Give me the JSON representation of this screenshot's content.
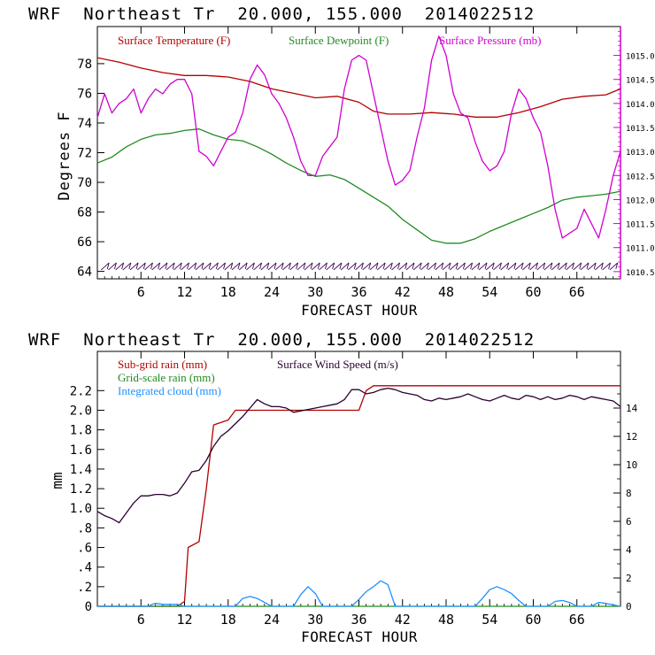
{
  "colors": {
    "temperature": "#b40000",
    "dewpoint": "#228b22",
    "pressure": "#d000d0",
    "subgrid_rain": "#b40000",
    "grid_rain": "#228b22",
    "cloud": "#1e90ff",
    "wind_speed": "#2a0030",
    "axis": "#000000"
  },
  "top_panel": {
    "header": "WRF  Northeast Tr  20.000, 155.000  2014022512",
    "ylabel": "Degrees F",
    "xlabel": "FORECAST HOUR",
    "legend": {
      "temperature": "Surface Temperature (F)",
      "dewpoint": "Surface Dewpoint (F)",
      "pressure": "Surface Pressure (mb)"
    }
  },
  "bottom_panel": {
    "header": "WRF  Northeast Tr  20.000, 155.000  2014022512",
    "ylabel": "mm",
    "xlabel": "FORECAST HOUR",
    "legend": {
      "subgrid_rain": "Sub-grid rain (mm)",
      "wind_speed": "Surface Wind Speed (m/s)",
      "grid_rain": "Grid-scale rain (mm)",
      "cloud": "Integrated cloud (mm)"
    }
  },
  "chart_data": [
    {
      "type": "line",
      "title": "WRF  Northeast Tr  20.000, 155.000  2014022512",
      "xlabel": "FORECAST HOUR",
      "ylabel": "Degrees F",
      "xlim": [
        0,
        72
      ],
      "ylim": [
        63.5,
        80.5
      ],
      "y2lim": [
        1010.35,
        1015.6
      ],
      "xticks": [
        6,
        12,
        18,
        24,
        30,
        36,
        42,
        48,
        54,
        60,
        66
      ],
      "xtick_labels": [
        "6",
        "12",
        "18",
        "24",
        "30",
        "36",
        "42",
        "48",
        "54",
        "60",
        "66"
      ],
      "yticks": [
        64,
        66,
        68,
        70,
        72,
        74,
        76,
        78
      ],
      "ytick_labels": [
        "64",
        "66",
        "68",
        "70",
        "72",
        "74",
        "76",
        "78"
      ],
      "y2ticks": [
        1010.5,
        1011.0,
        1011.5,
        1012.0,
        1012.5,
        1013.0,
        1013.5,
        1014.0,
        1014.5,
        1015.0
      ],
      "y2tick_labels": [
        "1010.5",
        "1011.0",
        "1011.5",
        "1012.0",
        "1012.5",
        "1013.0",
        "1013.5",
        "1014.0",
        "1014.5",
        "1015.0"
      ],
      "grid": false,
      "legend": "top",
      "series": [
        {
          "name": "Surface Temperature (F)",
          "axis": "left",
          "x": [
            0,
            3,
            6,
            9,
            12,
            15,
            18,
            21,
            24,
            27,
            30,
            33,
            36,
            38,
            40,
            43,
            46,
            49,
            52,
            55,
            58,
            61,
            64,
            67,
            70,
            72
          ],
          "y": [
            78.4,
            78.1,
            77.7,
            77.4,
            77.2,
            77.2,
            77.1,
            76.8,
            76.3,
            76.0,
            75.7,
            75.8,
            75.4,
            74.8,
            74.6,
            74.6,
            74.7,
            74.6,
            74.4,
            74.4,
            74.7,
            75.1,
            75.6,
            75.8,
            75.9,
            76.3
          ]
        },
        {
          "name": "Surface Dewpoint (F)",
          "axis": "left",
          "x": [
            0,
            2,
            4,
            6,
            8,
            10,
            12,
            14,
            16,
            18,
            20,
            22,
            24,
            26,
            28,
            30,
            32,
            34,
            36,
            38,
            40,
            42,
            44,
            46,
            48,
            50,
            52,
            54,
            56,
            58,
            60,
            62,
            64,
            66,
            68,
            70,
            72
          ],
          "y": [
            71.3,
            71.7,
            72.4,
            72.9,
            73.2,
            73.3,
            73.5,
            73.6,
            73.2,
            72.9,
            72.8,
            72.4,
            71.9,
            71.3,
            70.8,
            70.4,
            70.5,
            70.2,
            69.6,
            69.0,
            68.4,
            67.5,
            66.8,
            66.1,
            65.9,
            65.9,
            66.2,
            66.7,
            67.1,
            67.5,
            67.9,
            68.3,
            68.8,
            69.0,
            69.1,
            69.2,
            69.4
          ]
        },
        {
          "name": "Surface Pressure (mb)",
          "axis": "right",
          "x": [
            0,
            1,
            2,
            3,
            4,
            5,
            6,
            7,
            8,
            9,
            10,
            11,
            12,
            13,
            14,
            15,
            16,
            17,
            18,
            19,
            20,
            21,
            22,
            23,
            24,
            25,
            26,
            27,
            28,
            29,
            30,
            31,
            32,
            33,
            34,
            35,
            36,
            37,
            38,
            39,
            40,
            41,
            42,
            43,
            44,
            45,
            46,
            47,
            48,
            49,
            50,
            51,
            52,
            53,
            54,
            55,
            56,
            57,
            58,
            59,
            60,
            61,
            62,
            63,
            64,
            65,
            66,
            67,
            68,
            69,
            70,
            71,
            72
          ],
          "y": [
            1013.7,
            1014.2,
            1013.8,
            1014.0,
            1014.1,
            1014.3,
            1013.8,
            1014.1,
            1014.3,
            1014.2,
            1014.4,
            1014.5,
            1014.5,
            1014.2,
            1013.0,
            1012.9,
            1012.7,
            1013.0,
            1013.3,
            1013.4,
            1013.8,
            1014.5,
            1014.8,
            1014.6,
            1014.2,
            1014.0,
            1013.7,
            1013.3,
            1012.8,
            1012.5,
            1012.5,
            1012.9,
            1013.1,
            1013.3,
            1014.3,
            1014.9,
            1015.0,
            1014.9,
            1014.2,
            1013.5,
            1012.8,
            1012.3,
            1012.4,
            1012.6,
            1013.3,
            1013.9,
            1014.9,
            1015.4,
            1015.0,
            1014.2,
            1013.8,
            1013.7,
            1013.2,
            1012.8,
            1012.6,
            1012.7,
            1013.0,
            1013.8,
            1014.3,
            1014.1,
            1013.7,
            1013.4,
            1012.7,
            1011.8,
            1011.2,
            1011.3,
            1011.4,
            1011.8,
            1011.5,
            1011.2,
            1011.8,
            1012.5,
            1013.0
          ]
        }
      ],
      "wind_barbs": {
        "y": 64.4,
        "x": [
          1,
          2,
          3,
          4,
          5,
          6,
          7,
          8,
          9,
          10,
          11,
          12,
          13,
          14,
          15,
          16,
          17,
          18,
          19,
          20,
          21,
          22,
          23,
          24,
          25,
          26,
          27,
          28,
          29,
          30,
          31,
          32,
          33,
          34,
          35,
          36,
          37,
          38,
          39,
          40,
          41,
          42,
          43,
          44,
          45,
          46,
          47,
          48,
          49,
          50,
          51,
          52,
          53,
          54,
          55,
          56,
          57,
          58,
          59,
          60,
          61,
          62,
          63,
          64,
          65,
          66,
          67,
          68,
          69,
          70,
          71
        ]
      }
    },
    {
      "type": "line",
      "title": "WRF  Northeast Tr  20.000, 155.000  2014022512",
      "xlabel": "FORECAST HOUR",
      "ylabel": "mm",
      "xlim": [
        0,
        72
      ],
      "ylim": [
        0,
        2.6
      ],
      "y2lim": [
        0,
        18
      ],
      "xticks": [
        6,
        12,
        18,
        24,
        30,
        36,
        42,
        48,
        54,
        60,
        66
      ],
      "xtick_labels": [
        "6",
        "12",
        "18",
        "24",
        "30",
        "36",
        "42",
        "48",
        "54",
        "60",
        "66"
      ],
      "yticks": [
        0,
        0.2,
        0.4,
        0.6,
        0.8,
        1.0,
        1.2,
        1.4,
        1.6,
        1.8,
        2.0,
        2.2
      ],
      "ytick_labels": [
        "0",
        ".2",
        ".4",
        ".6",
        ".8",
        "1.0",
        "1.2",
        "1.4",
        "1.6",
        "1.8",
        "2.0",
        "2.2"
      ],
      "y2ticks": [
        0,
        2,
        4,
        6,
        8,
        10,
        12,
        14
      ],
      "y2tick_labels": [
        "0",
        "2",
        "4",
        "6",
        "8",
        "10",
        "12",
        "14"
      ],
      "grid": false,
      "legend": "top",
      "series": [
        {
          "name": "Sub-grid rain (mm)",
          "axis": "left",
          "x": [
            0,
            11,
            12,
            12.5,
            14,
            15,
            16,
            18,
            19,
            24,
            30,
            36,
            37,
            38,
            72
          ],
          "y": [
            0,
            0,
            0.05,
            0.6,
            0.66,
            1.2,
            1.85,
            1.9,
            2.0,
            2.0,
            2.0,
            2.0,
            2.2,
            2.25,
            2.25
          ]
        },
        {
          "name": "Surface Wind Speed (m/s)",
          "axis": "right",
          "x": [
            0,
            1,
            2,
            3,
            4,
            5,
            6,
            7,
            8,
            9,
            10,
            11,
            12,
            13,
            14,
            15,
            16,
            17,
            18,
            19,
            20,
            21,
            22,
            23,
            24,
            25,
            26,
            27,
            28,
            29,
            30,
            31,
            32,
            33,
            34,
            35,
            36,
            37,
            38,
            39,
            40,
            41,
            42,
            43,
            44,
            45,
            46,
            47,
            48,
            49,
            50,
            51,
            52,
            53,
            54,
            55,
            56,
            57,
            58,
            59,
            60,
            61,
            62,
            63,
            64,
            65,
            66,
            67,
            68,
            69,
            70,
            71,
            72
          ],
          "y": [
            6.7,
            6.4,
            6.2,
            5.9,
            6.6,
            7.3,
            7.8,
            7.8,
            7.9,
            7.9,
            7.8,
            8.0,
            8.7,
            9.5,
            9.6,
            10.3,
            11.3,
            12.0,
            12.4,
            12.9,
            13.4,
            14.0,
            14.6,
            14.3,
            14.1,
            14.1,
            14.0,
            13.7,
            13.8,
            13.9,
            14.0,
            14.1,
            14.2,
            14.3,
            14.6,
            15.3,
            15.3,
            15.0,
            15.1,
            15.3,
            15.4,
            15.3,
            15.1,
            15.0,
            14.9,
            14.6,
            14.5,
            14.7,
            14.6,
            14.7,
            14.8,
            15.0,
            14.8,
            14.6,
            14.5,
            14.7,
            14.9,
            14.7,
            14.6,
            14.9,
            14.8,
            14.6,
            14.8,
            14.6,
            14.7,
            14.9,
            14.8,
            14.6,
            14.8,
            14.7,
            14.6,
            14.5,
            14.1
          ]
        },
        {
          "name": "Grid-scale rain (mm)",
          "axis": "left",
          "x": [
            0,
            72
          ],
          "y": [
            0,
            0
          ]
        },
        {
          "name": "Integrated cloud (mm)",
          "axis": "left",
          "x": [
            0,
            7,
            7.5,
            8,
            9,
            11,
            12,
            19,
            20,
            21,
            22,
            23,
            24,
            27,
            28,
            29,
            30,
            31,
            35,
            36,
            37,
            38,
            39,
            40,
            41,
            52,
            53,
            54,
            55,
            56,
            57,
            58,
            59,
            62,
            63,
            64,
            65,
            66,
            68,
            69,
            70,
            72
          ],
          "y": [
            0,
            0,
            0.02,
            0.03,
            0.02,
            0.02,
            0,
            0,
            0.08,
            0.1,
            0.08,
            0.04,
            0,
            0,
            0.12,
            0.2,
            0.13,
            0,
            0,
            0.07,
            0.15,
            0.2,
            0.26,
            0.22,
            0,
            0,
            0.08,
            0.17,
            0.2,
            0.17,
            0.13,
            0.06,
            0,
            0,
            0.05,
            0.06,
            0.04,
            0,
            0,
            0.04,
            0.03,
            0
          ]
        }
      ]
    }
  ]
}
